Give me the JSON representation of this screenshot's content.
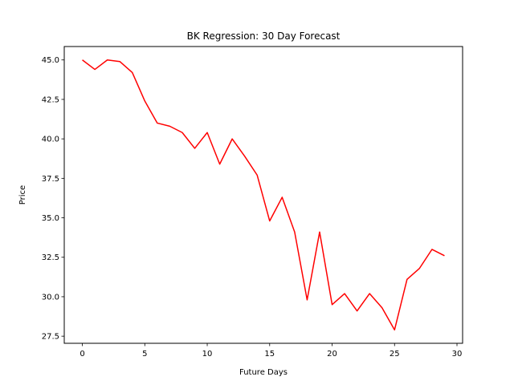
{
  "chart_data": {
    "type": "line",
    "title": "BK Regression: 30 Day Forecast",
    "xlabel": "Future Days",
    "ylabel": "Price",
    "xlim": [
      -1.45,
      30.45
    ],
    "ylim": [
      27.05,
      45.85
    ],
    "x_ticks": [
      0,
      5,
      10,
      15,
      20,
      25,
      30
    ],
    "x_tick_labels": [
      "0",
      "5",
      "10",
      "15",
      "20",
      "25",
      "30"
    ],
    "y_ticks": [
      27.5,
      30.0,
      32.5,
      35.0,
      37.5,
      40.0,
      42.5,
      45.0
    ],
    "y_tick_labels": [
      "27.5",
      "30.0",
      "32.5",
      "35.0",
      "37.5",
      "40.0",
      "42.5",
      "45.0"
    ],
    "grid": false,
    "series": [
      {
        "color": "#ff0000",
        "x": [
          0,
          1,
          2,
          3,
          4,
          5,
          6,
          7,
          8,
          9,
          10,
          11,
          12,
          13,
          14,
          15,
          16,
          17,
          18,
          19,
          20,
          21,
          22,
          23,
          24,
          25,
          26,
          27,
          28,
          29
        ],
        "y": [
          45.0,
          44.4,
          45.0,
          44.9,
          44.2,
          42.4,
          41.0,
          40.8,
          40.4,
          39.4,
          40.4,
          38.4,
          40.0,
          38.9,
          37.7,
          34.8,
          36.3,
          34.1,
          29.8,
          34.1,
          29.5,
          30.2,
          29.1,
          30.2,
          29.3,
          27.9,
          31.1,
          31.8,
          33.0,
          32.6
        ]
      }
    ]
  }
}
